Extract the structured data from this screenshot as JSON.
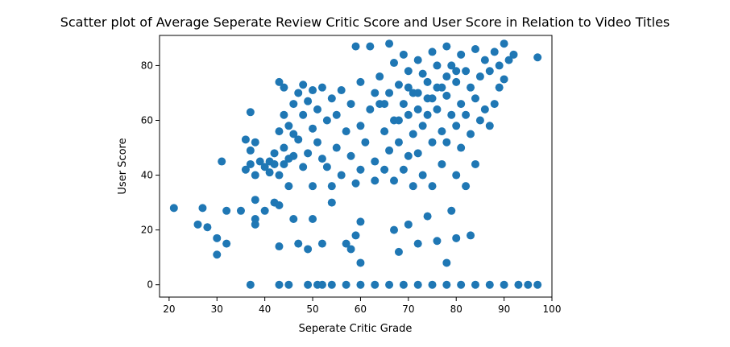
{
  "chart_data": {
    "type": "scatter",
    "title": "Scatter plot of Average Seperate Review Critic Score and User Score in Relation to Video Titles",
    "xlabel": "Seperate Critic Grade",
    "ylabel": "User Score",
    "xlim": [
      18,
      100
    ],
    "ylim": [
      -4.5,
      91
    ],
    "xticks": [
      "20",
      "30",
      "40",
      "50",
      "60",
      "70",
      "80",
      "90",
      "100"
    ],
    "yticks": [
      "0",
      "20",
      "40",
      "60",
      "80"
    ],
    "grid": false,
    "legend": "none",
    "point_color": "#1f77b4",
    "series": [
      {
        "points": [
          [
            21,
            28
          ],
          [
            26,
            22
          ],
          [
            27,
            28
          ],
          [
            28,
            21
          ],
          [
            30,
            17
          ],
          [
            30,
            11
          ],
          [
            31,
            45
          ],
          [
            32,
            27
          ],
          [
            32,
            15
          ],
          [
            35,
            27
          ],
          [
            36,
            53
          ],
          [
            36,
            42
          ],
          [
            37,
            63
          ],
          [
            37,
            49
          ],
          [
            37,
            44
          ],
          [
            38,
            52
          ],
          [
            38,
            40
          ],
          [
            38,
            31
          ],
          [
            38,
            24
          ],
          [
            38,
            22
          ],
          [
            39,
            45
          ],
          [
            40,
            43
          ],
          [
            40,
            27
          ],
          [
            41,
            45
          ],
          [
            41,
            41
          ],
          [
            42,
            48
          ],
          [
            42,
            44
          ],
          [
            42,
            30
          ],
          [
            43,
            74
          ],
          [
            43,
            56
          ],
          [
            43,
            40
          ],
          [
            43,
            29
          ],
          [
            43,
            14
          ],
          [
            44,
            72
          ],
          [
            44,
            62
          ],
          [
            44,
            50
          ],
          [
            44,
            44
          ],
          [
            45,
            58
          ],
          [
            45,
            46
          ],
          [
            45,
            36
          ],
          [
            46,
            66
          ],
          [
            46,
            55
          ],
          [
            46,
            47
          ],
          [
            46,
            24
          ],
          [
            47,
            70
          ],
          [
            47,
            53
          ],
          [
            47,
            15
          ],
          [
            48,
            73
          ],
          [
            48,
            62
          ],
          [
            48,
            43
          ],
          [
            49,
            67
          ],
          [
            49,
            48
          ],
          [
            49,
            13
          ],
          [
            50,
            71
          ],
          [
            50,
            57
          ],
          [
            50,
            36
          ],
          [
            50,
            24
          ],
          [
            51,
            64
          ],
          [
            51,
            52
          ],
          [
            52,
            72
          ],
          [
            52,
            46
          ],
          [
            52,
            15
          ],
          [
            53,
            60
          ],
          [
            53,
            43
          ],
          [
            54,
            68
          ],
          [
            54,
            36
          ],
          [
            54,
            30
          ],
          [
            55,
            62
          ],
          [
            55,
            50
          ],
          [
            56,
            71
          ],
          [
            56,
            40
          ],
          [
            57,
            56
          ],
          [
            57,
            15
          ],
          [
            58,
            66
          ],
          [
            58,
            47
          ],
          [
            58,
            13
          ],
          [
            59,
            87
          ],
          [
            59,
            37
          ],
          [
            59,
            18
          ],
          [
            60,
            74
          ],
          [
            60,
            58
          ],
          [
            60,
            42
          ],
          [
            60,
            23
          ],
          [
            60,
            8
          ],
          [
            61,
            52
          ],
          [
            62,
            87
          ],
          [
            62,
            64
          ],
          [
            63,
            45
          ],
          [
            63,
            38
          ],
          [
            64,
            76
          ],
          [
            64,
            66
          ],
          [
            65,
            56
          ],
          [
            65,
            42
          ],
          [
            66,
            88
          ],
          [
            66,
            70
          ],
          [
            66,
            49
          ],
          [
            67,
            81
          ],
          [
            67,
            60
          ],
          [
            67,
            38
          ],
          [
            67,
            20
          ],
          [
            68,
            73
          ],
          [
            68,
            52
          ],
          [
            68,
            12
          ],
          [
            69,
            84
          ],
          [
            69,
            66
          ],
          [
            69,
            42
          ],
          [
            70,
            78
          ],
          [
            70,
            62
          ],
          [
            70,
            47
          ],
          [
            70,
            22
          ],
          [
            71,
            70
          ],
          [
            71,
            55
          ],
          [
            71,
            36
          ],
          [
            72,
            82
          ],
          [
            72,
            64
          ],
          [
            72,
            48
          ],
          [
            72,
            15
          ],
          [
            73,
            77
          ],
          [
            73,
            58
          ],
          [
            73,
            40
          ],
          [
            74,
            74
          ],
          [
            74,
            62
          ],
          [
            74,
            25
          ],
          [
            75,
            85
          ],
          [
            75,
            68
          ],
          [
            75,
            52
          ],
          [
            75,
            36
          ],
          [
            76,
            80
          ],
          [
            76,
            64
          ],
          [
            76,
            16
          ],
          [
            77,
            72
          ],
          [
            77,
            56
          ],
          [
            77,
            44
          ],
          [
            78,
            87
          ],
          [
            78,
            69
          ],
          [
            78,
            52
          ],
          [
            78,
            8
          ],
          [
            79,
            80
          ],
          [
            79,
            62
          ],
          [
            79,
            27
          ],
          [
            80,
            74
          ],
          [
            80,
            58
          ],
          [
            80,
            40
          ],
          [
            80,
            17
          ],
          [
            81,
            84
          ],
          [
            81,
            66
          ],
          [
            81,
            50
          ],
          [
            82,
            78
          ],
          [
            82,
            62
          ],
          [
            82,
            36
          ],
          [
            83,
            72
          ],
          [
            83,
            55
          ],
          [
            83,
            18
          ],
          [
            84,
            86
          ],
          [
            84,
            68
          ],
          [
            84,
            44
          ],
          [
            85,
            76
          ],
          [
            85,
            60
          ],
          [
            86,
            82
          ],
          [
            86,
            64
          ],
          [
            87,
            78
          ],
          [
            87,
            58
          ],
          [
            88,
            85
          ],
          [
            88,
            66
          ],
          [
            89,
            80
          ],
          [
            89,
            72
          ],
          [
            90,
            88
          ],
          [
            90,
            75
          ],
          [
            91,
            82
          ],
          [
            92,
            84
          ],
          [
            97,
            83
          ],
          [
            63,
            70
          ],
          [
            65,
            66
          ],
          [
            68,
            60
          ],
          [
            70,
            72
          ],
          [
            72,
            70
          ],
          [
            74,
            68
          ],
          [
            76,
            72
          ],
          [
            78,
            76
          ],
          [
            80,
            78
          ],
          [
            37,
            0
          ],
          [
            43,
            0
          ],
          [
            45,
            0
          ],
          [
            49,
            0
          ],
          [
            51,
            0
          ],
          [
            52,
            0
          ],
          [
            54,
            0
          ],
          [
            57,
            0
          ],
          [
            60,
            0
          ],
          [
            63,
            0
          ],
          [
            66,
            0
          ],
          [
            69,
            0
          ],
          [
            72,
            0
          ],
          [
            75,
            0
          ],
          [
            78,
            0
          ],
          [
            81,
            0
          ],
          [
            84,
            0
          ],
          [
            87,
            0
          ],
          [
            90,
            0
          ],
          [
            93,
            0
          ],
          [
            95,
            0
          ],
          [
            97,
            0
          ]
        ]
      }
    ]
  }
}
